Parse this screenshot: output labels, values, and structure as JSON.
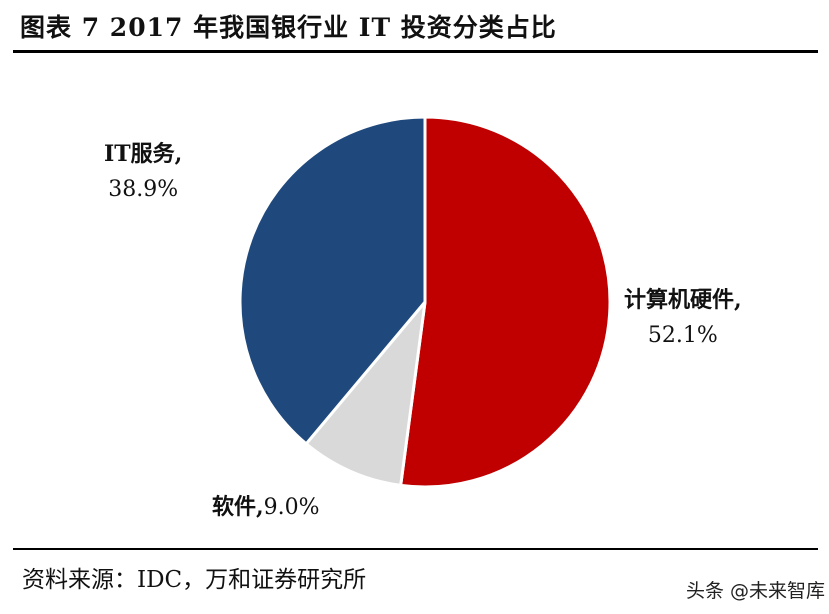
{
  "header": {
    "title": "图表 7   2017 年我国银行业 IT 投资分类占比"
  },
  "footer": {
    "source": "资料来源：IDC，万和证券研究所",
    "watermark": "头条 @未来智库"
  },
  "labels": {
    "hardware": {
      "name": "计算机硬件,",
      "value": "52.1%"
    },
    "software": {
      "name": "软件,",
      "value": "9.0%"
    },
    "it_services": {
      "name": "IT服务,",
      "value": "38.9%"
    }
  },
  "chart_data": {
    "type": "pie",
    "title": "2017 年我国银行业 IT 投资分类占比",
    "categories": [
      "计算机硬件",
      "软件",
      "IT服务"
    ],
    "values": [
      52.1,
      9.0,
      38.9
    ],
    "unit": "%",
    "colors": [
      "#C00000",
      "#D9D9D9",
      "#1F497D"
    ],
    "start_angle": "12 o'clock",
    "direction": "clockwise",
    "legend": "none (data labels)",
    "source": "IDC，万和证券研究所"
  }
}
